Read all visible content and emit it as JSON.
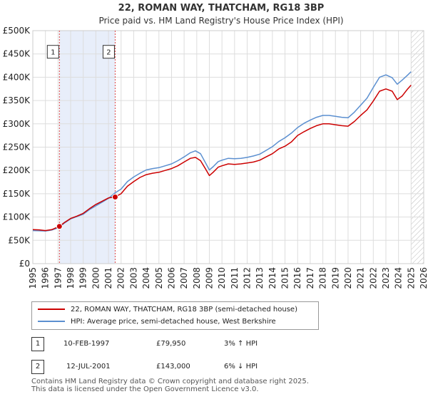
{
  "chart_data": {
    "type": "line",
    "title": "22, ROMAN WAY, THATCHAM, RG18 3BP",
    "subtitle": "Price paid vs. HM Land Registry's House Price Index (HPI)",
    "x_range": [
      1995,
      2026
    ],
    "ylim": [
      0,
      500000
    ],
    "y_ticks": [
      0,
      50000,
      100000,
      150000,
      200000,
      250000,
      300000,
      350000,
      400000,
      450000,
      500000
    ],
    "y_tick_labels": [
      "£0",
      "£50K",
      "£100K",
      "£150K",
      "£200K",
      "£250K",
      "£300K",
      "£350K",
      "£400K",
      "£450K",
      "£500K"
    ],
    "x_ticks": [
      1995,
      1996,
      1997,
      1998,
      1999,
      2000,
      2001,
      2002,
      2003,
      2004,
      2005,
      2006,
      2007,
      2008,
      2009,
      2010,
      2011,
      2012,
      2013,
      2014,
      2015,
      2016,
      2017,
      2018,
      2019,
      2020,
      2021,
      2022,
      2023,
      2024,
      2025,
      2026
    ],
    "x_tick_labels": [
      "1995",
      "1996",
      "1997",
      "1998",
      "1999",
      "2000",
      "2001",
      "2002",
      "2003",
      "2004",
      "2005",
      "2006",
      "2007",
      "2008",
      "2009",
      "2010",
      "2011",
      "2012",
      "2013",
      "2014",
      "2015",
      "2016",
      "2017",
      "2018",
      "2019",
      "2020",
      "2021",
      "2022",
      "2023",
      "2024",
      "2025",
      "2026"
    ],
    "grid": true,
    "shaded_period": [
      1997.11,
      2001.53
    ],
    "future_hatch_from": 2025.0,
    "series": [
      {
        "name": "22, ROMAN WAY, THATCHAM, RG18 3BP (semi-detached house)",
        "color": "#cc0000",
        "x": [
          1995.0,
          1995.5,
          1996.0,
          1996.5,
          1997.11,
          1997.5,
          1998.0,
          1998.5,
          1999.0,
          1999.5,
          2000.0,
          2000.5,
          2001.0,
          2001.53,
          2002.0,
          2002.5,
          2003.0,
          2003.5,
          2004.0,
          2004.5,
          2005.0,
          2005.5,
          2006.0,
          2006.5,
          2007.0,
          2007.5,
          2007.9,
          2008.3,
          2008.7,
          2009.0,
          2009.3,
          2009.7,
          2010.0,
          2010.5,
          2011.0,
          2011.5,
          2012.0,
          2012.5,
          2013.0,
          2013.5,
          2014.0,
          2014.5,
          2015.0,
          2015.5,
          2016.0,
          2016.5,
          2017.0,
          2017.5,
          2018.0,
          2018.5,
          2019.0,
          2019.5,
          2020.0,
          2020.5,
          2021.0,
          2021.5,
          2022.0,
          2022.5,
          2023.0,
          2023.5,
          2023.9,
          2024.3,
          2024.7,
          2025.0
        ],
        "values": [
          73000,
          72500,
          71000,
          73000,
          79950,
          88000,
          97000,
          102000,
          108000,
          118000,
          127000,
          134000,
          141000,
          143000,
          150000,
          166000,
          176000,
          185000,
          191000,
          194000,
          196000,
          200000,
          204000,
          210000,
          218000,
          226000,
          228000,
          221000,
          203000,
          189000,
          196000,
          207000,
          210000,
          214000,
          213000,
          214000,
          216000,
          218000,
          222000,
          229000,
          236000,
          246000,
          252000,
          261000,
          275000,
          283000,
          290000,
          296000,
          300000,
          300000,
          298000,
          296000,
          295000,
          305000,
          318000,
          330000,
          349000,
          370000,
          375000,
          370000,
          352000,
          360000,
          374000,
          383000
        ]
      },
      {
        "name": "HPI: Average price, semi-detached house, West Berkshire",
        "color": "#5b8fd0",
        "x": [
          1995.0,
          1995.5,
          1996.0,
          1996.5,
          1997.11,
          1997.5,
          1998.0,
          1998.5,
          1999.0,
          1999.5,
          2000.0,
          2000.5,
          2001.0,
          2001.53,
          2002.0,
          2002.5,
          2003.0,
          2003.5,
          2004.0,
          2004.5,
          2005.0,
          2005.5,
          2006.0,
          2006.5,
          2007.0,
          2007.5,
          2007.9,
          2008.3,
          2008.7,
          2009.0,
          2009.3,
          2009.7,
          2010.0,
          2010.5,
          2011.0,
          2011.5,
          2012.0,
          2012.5,
          2013.0,
          2013.5,
          2014.0,
          2014.5,
          2015.0,
          2015.5,
          2016.0,
          2016.5,
          2017.0,
          2017.5,
          2018.0,
          2018.5,
          2019.0,
          2019.5,
          2020.0,
          2020.5,
          2021.0,
          2021.5,
          2022.0,
          2022.5,
          2023.0,
          2023.5,
          2023.9,
          2024.3,
          2024.7,
          2025.0
        ],
        "values": [
          71000,
          70500,
          70000,
          72000,
          77600,
          87000,
          96000,
          101000,
          106000,
          116000,
          124000,
          132000,
          140000,
          152000,
          160000,
          176000,
          186000,
          194000,
          201000,
          204000,
          206000,
          210000,
          214000,
          221000,
          229000,
          238000,
          242000,
          236000,
          216000,
          201000,
          208000,
          219000,
          222000,
          226000,
          225000,
          226000,
          228000,
          231000,
          235000,
          243000,
          251000,
          262000,
          270000,
          280000,
          292000,
          301000,
          308000,
          314000,
          318000,
          318000,
          316000,
          314000,
          313000,
          325000,
          340000,
          355000,
          378000,
          400000,
          405000,
          399000,
          385000,
          394000,
          404000,
          412000
        ]
      }
    ],
    "sale_markers": [
      {
        "label": "1",
        "x": 1997.11,
        "y": 79950
      },
      {
        "label": "2",
        "x": 2001.53,
        "y": 143000
      }
    ]
  },
  "legend": {
    "items": [
      {
        "label": "22, ROMAN WAY, THATCHAM, RG18 3BP (semi-detached house)",
        "color": "#cc0000"
      },
      {
        "label": "HPI: Average price, semi-detached house, West Berkshire",
        "color": "#5b8fd0"
      }
    ]
  },
  "transactions": [
    {
      "num": "1",
      "date": "10-FEB-1997",
      "price": "£79,950",
      "hpi": "3% ↑ HPI"
    },
    {
      "num": "2",
      "date": "12-JUL-2001",
      "price": "£143,000",
      "hpi": "6% ↓ HPI"
    }
  ],
  "footer": {
    "line1": "Contains HM Land Registry data © Crown copyright and database right 2025.",
    "line2": "This data is licensed under the Open Government Licence v3.0."
  }
}
